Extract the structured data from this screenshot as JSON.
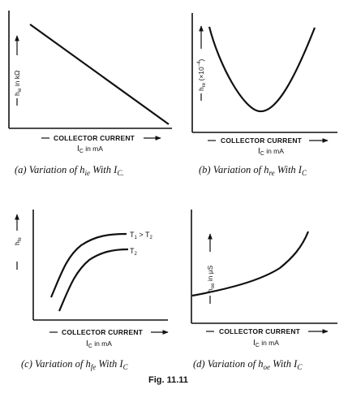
{
  "figure_label": "Fig. 11.11",
  "panels": {
    "a": {
      "ylabel": "h",
      "ylabel_sub": "ie",
      "ylabel_rest": " in kΩ",
      "xlabel": "COLLECTOR CURRENT",
      "xunit": "I",
      "xunit_sub": "C",
      "xunit_rest": " in mA",
      "caption": "(a) Variation of h",
      "caption_sub": "ie",
      "caption_rest": " With I",
      "caption_sub2": "C."
    },
    "b": {
      "ylabel": "h",
      "ylabel_sub": "re",
      "ylabel_rest": " (×10",
      "ylabel_sup": "−4",
      "ylabel_end": ")",
      "xlabel": "COLLECTOR CURRENT",
      "xunit": "I",
      "xunit_sub": "C",
      "xunit_rest": " in mA",
      "caption": "(b) Variation of h",
      "caption_sub": "re",
      "caption_rest": " With I",
      "caption_sub2": "C"
    },
    "c": {
      "ylabel": "h",
      "ylabel_sub": "fe",
      "xlabel": "COLLECTOR CURRENT",
      "xunit": "I",
      "xunit_sub": "C",
      "xunit_rest": " in mA",
      "curve1_label": "T",
      "curve1_sub1": "1",
      "curve1_mid": " > T",
      "curve1_sub2": "2",
      "curve2_label": "T",
      "curve2_sub": "2",
      "caption": "(c) Variation of h",
      "caption_sub": "fe",
      "caption_rest": " With I",
      "caption_sub2": "C"
    },
    "d": {
      "ylabel": "h",
      "ylabel_sub": "oe",
      "ylabel_rest": " in μS",
      "xlabel": "COLLECTOR CURRENT",
      "xunit": "I",
      "xunit_sub": "C",
      "xunit_rest": " in mA",
      "caption": "(d) Variation of h",
      "caption_sub": "oe",
      "caption_rest": " With I",
      "caption_sub2": "C"
    }
  }
}
